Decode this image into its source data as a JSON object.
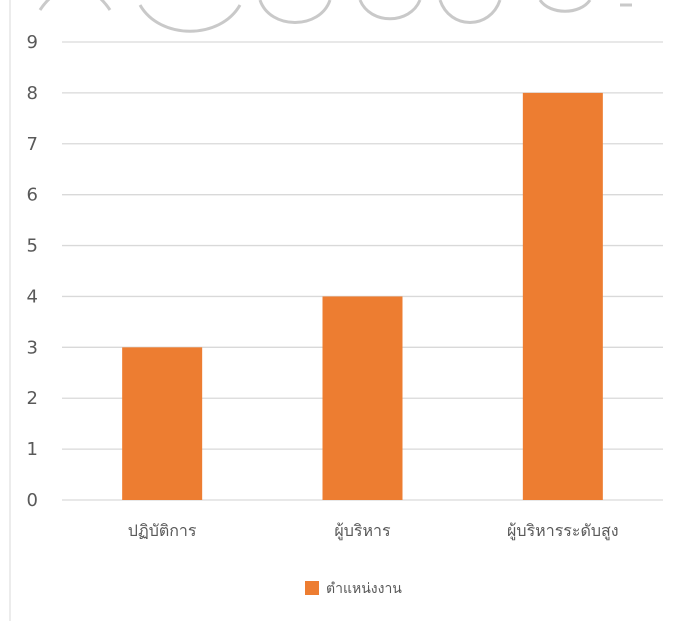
{
  "chart_data": {
    "type": "bar",
    "categories": [
      "ปฏิบัติการ",
      "ผู้บริหาร",
      "ผู้บริหารระดับสูง"
    ],
    "series": [
      {
        "name": "ตำแหน่งงาน",
        "values": [
          3,
          4,
          8
        ]
      }
    ],
    "ylim": [
      0,
      9
    ],
    "yticks": [
      0,
      1,
      2,
      3,
      4,
      5,
      6,
      7,
      8,
      9
    ],
    "grid": true,
    "legend": "bottom",
    "colors": {
      "bar": "#ED7D31",
      "grid": "#D9D9D9",
      "text": "#595959",
      "frame": "#D9D9D9"
    }
  }
}
